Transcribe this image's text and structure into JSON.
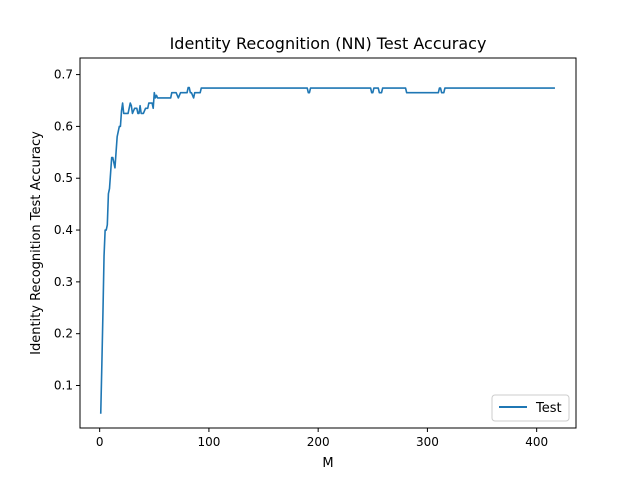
{
  "chart_data": {
    "type": "line",
    "title": "Identity Recognition (NN) Test Accuracy",
    "xlabel": "M",
    "ylabel": "Identity Recognition Test Accuracy",
    "xlim": [
      -18,
      436
    ],
    "ylim": [
      0.018,
      0.732
    ],
    "xticks": [
      0,
      100,
      200,
      300,
      400
    ],
    "yticks": [
      0.1,
      0.2,
      0.3,
      0.4,
      0.5,
      0.6,
      0.7
    ],
    "ytick_labels": [
      "0.1",
      "0.2",
      "0.3",
      "0.4",
      "0.5",
      "0.6",
      "0.7"
    ],
    "grid": false,
    "legend_position": "lower-right",
    "series": [
      {
        "name": "Test",
        "color": "#1f77b4",
        "x": [
          1,
          2,
          3,
          4,
          5,
          6,
          7,
          8,
          9,
          10,
          11,
          12,
          13,
          14,
          15,
          16,
          17,
          18,
          19,
          20,
          21,
          22,
          23,
          24,
          25,
          26,
          28,
          29,
          30,
          31,
          32,
          34,
          35,
          36,
          37,
          38,
          39,
          40,
          42,
          44,
          45,
          46,
          48,
          49,
          50,
          51,
          52,
          53,
          55,
          60,
          65,
          66,
          67,
          70,
          72,
          74,
          75,
          78,
          80,
          81,
          82,
          83,
          84,
          86,
          87,
          88,
          90,
          92,
          93,
          95,
          100,
          120,
          150,
          180,
          190,
          191,
          192,
          193,
          200,
          220,
          245,
          248,
          249,
          250,
          251,
          252,
          255,
          256,
          258,
          259,
          260,
          262,
          270,
          280,
          281,
          282,
          284,
          290,
          300,
          310,
          311,
          312,
          313,
          315,
          316,
          318,
          320,
          350,
          380,
          400,
          416
        ],
        "y": [
          0.047,
          0.14,
          0.24,
          0.35,
          0.4,
          0.4,
          0.41,
          0.47,
          0.48,
          0.51,
          0.54,
          0.54,
          0.53,
          0.52,
          0.55,
          0.58,
          0.59,
          0.6,
          0.6,
          0.63,
          0.645,
          0.625,
          0.625,
          0.625,
          0.625,
          0.625,
          0.645,
          0.64,
          0.625,
          0.63,
          0.635,
          0.635,
          0.625,
          0.625,
          0.64,
          0.625,
          0.625,
          0.625,
          0.635,
          0.635,
          0.645,
          0.645,
          0.645,
          0.635,
          0.665,
          0.655,
          0.66,
          0.655,
          0.655,
          0.655,
          0.655,
          0.665,
          0.665,
          0.665,
          0.655,
          0.665,
          0.665,
          0.665,
          0.665,
          0.675,
          0.675,
          0.665,
          0.665,
          0.655,
          0.665,
          0.665,
          0.665,
          0.665,
          0.674,
          0.674,
          0.674,
          0.674,
          0.674,
          0.674,
          0.674,
          0.665,
          0.665,
          0.674,
          0.674,
          0.674,
          0.674,
          0.674,
          0.665,
          0.665,
          0.674,
          0.674,
          0.674,
          0.665,
          0.665,
          0.674,
          0.674,
          0.674,
          0.674,
          0.674,
          0.665,
          0.665,
          0.665,
          0.665,
          0.665,
          0.665,
          0.674,
          0.674,
          0.665,
          0.665,
          0.674,
          0.674,
          0.674,
          0.674,
          0.674,
          0.674,
          0.674
        ]
      }
    ]
  }
}
